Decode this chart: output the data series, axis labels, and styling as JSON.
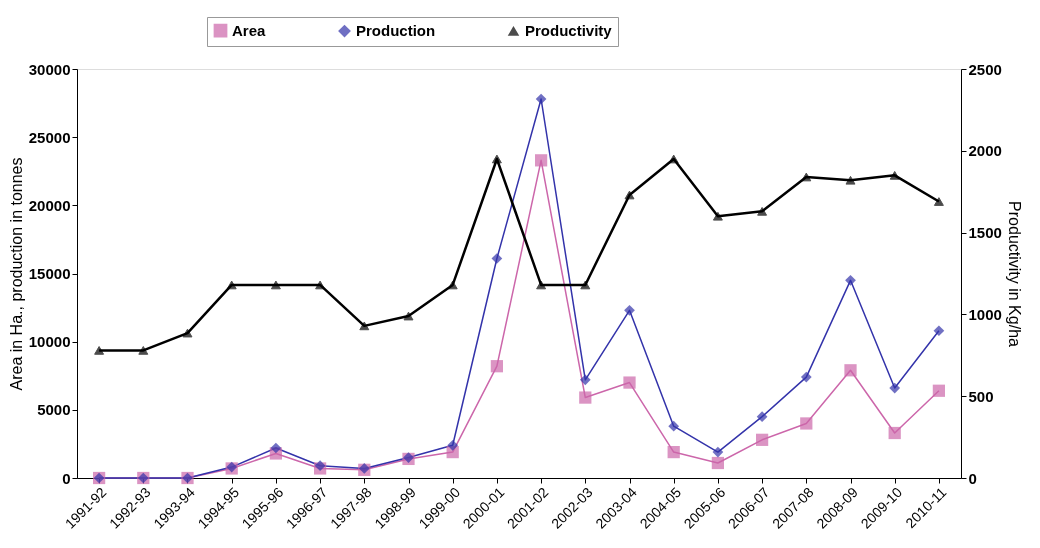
{
  "chart_data": {
    "type": "line",
    "categories": [
      "1991-92",
      "1992-93",
      "1993-94",
      "1994-95",
      "1995-96",
      "1996-97",
      "1997-98",
      "1998-99",
      "1999-00",
      "2000-01",
      "2001-02",
      "2002-03",
      "2003-04",
      "2004-05",
      "2005-06",
      "2006-07",
      "2007-08",
      "2008-09",
      "2009-10",
      "2010-11"
    ],
    "series": [
      {
        "name": "Area",
        "color": "#cc66aa",
        "marker": "square",
        "values": [
          0,
          0,
          0,
          700,
          1800,
          700,
          600,
          1400,
          1900,
          8200,
          23300,
          5900,
          7000,
          1900,
          1100,
          2800,
          4000,
          7900,
          3300,
          6400
        ]
      },
      {
        "name": "Production",
        "color": "#3333aa",
        "marker": "diamond",
        "values": [
          0,
          0,
          0,
          800,
          2200,
          900,
          700,
          1500,
          2400,
          16100,
          27800,
          7200,
          12300,
          3800,
          1900,
          4500,
          7400,
          14500,
          6600,
          10800
        ]
      },
      {
        "name": "Productivity",
        "color": "#000000",
        "marker": "triangle",
        "axis": "y2",
        "values": [
          780,
          780,
          886,
          1180,
          1180,
          1180,
          930,
          990,
          1180,
          1950,
          1180,
          1180,
          1730,
          1950,
          1600,
          1630,
          1840,
          1820,
          1850,
          1690
        ]
      }
    ],
    "ylabel": "Area in Ha., production in tonnes",
    "y2label": "Productivity in Kg/ha",
    "ylim": [
      0,
      30000
    ],
    "yticks": [
      0,
      5000,
      10000,
      15000,
      20000,
      25000,
      30000
    ],
    "y2lim": [
      0,
      2500
    ],
    "y2ticks": [
      0,
      500,
      1000,
      1500,
      2000,
      2500
    ],
    "grid": false,
    "legend": "top",
    "line_style": "solid"
  }
}
